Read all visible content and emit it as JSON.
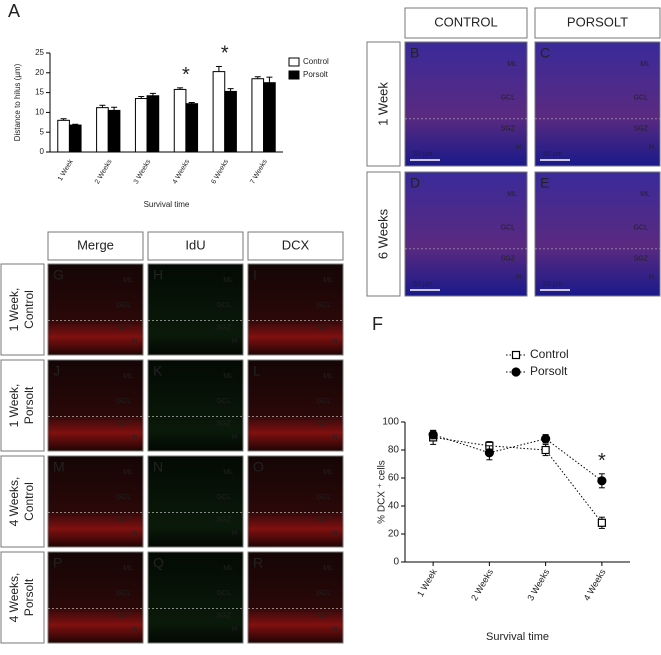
{
  "chart_data": [
    {
      "type": "bar",
      "panel_label": "A",
      "categories": [
        "1 Week",
        "2 Weeks",
        "3 Weeks",
        "4 Weeks",
        "6 Weeks",
        "7 Weeks"
      ],
      "series": [
        {
          "name": "Control",
          "color": "#ffffff",
          "values": [
            8,
            11.2,
            13.5,
            15.8,
            20.3,
            18.5
          ],
          "errors": [
            0.4,
            0.6,
            0.5,
            0.4,
            1.3,
            0.5
          ]
        },
        {
          "name": "Porsolt",
          "color": "#000000",
          "values": [
            6.8,
            10.5,
            14.2,
            12.2,
            15.3,
            17.5
          ],
          "errors": [
            0.2,
            0.8,
            0.6,
            0.3,
            0.7,
            1.4
          ]
        }
      ],
      "xlabel": "Survival time",
      "ylabel": "Distance to hilus (µm)",
      "ylim": [
        0,
        25
      ],
      "yticks": [
        0,
        5,
        10,
        15,
        20,
        25
      ],
      "annotations": [
        {
          "text": "*",
          "category": "4 Weeks",
          "color": "#e03030"
        },
        {
          "text": "*",
          "category": "6 Weeks",
          "color": "#e03030"
        }
      ]
    },
    {
      "type": "line",
      "panel_label": "F",
      "categories": [
        "1 Week",
        "2 Weeks",
        "3 Weeks",
        "4 Weeks"
      ],
      "series": [
        {
          "name": "Control",
          "color": "#ffffff",
          "marker": "square",
          "linestyle": "dotted",
          "values": [
            89,
            83,
            80,
            28
          ],
          "errors": [
            5,
            3,
            4,
            4
          ]
        },
        {
          "name": "Porsolt",
          "color": "#000000",
          "marker": "circle",
          "linestyle": "dotted",
          "values": [
            91,
            78,
            88,
            58
          ],
          "errors": [
            3,
            5,
            3,
            5
          ]
        }
      ],
      "xlabel": "Survival time",
      "ylabel": "% DCX ⁺ cells",
      "ylim": [
        0,
        100
      ],
      "yticks": [
        0,
        20,
        40,
        60,
        80,
        100
      ],
      "annotations": [
        {
          "text": "*",
          "category": "4 Weeks",
          "color": "#e03030"
        }
      ]
    }
  ],
  "figure_panels": {
    "top": {
      "columns": [
        "CONTROL",
        "PORSOLT"
      ],
      "rows": [
        [
          "1 Week"
        ],
        [
          "6 Weeks"
        ]
      ],
      "panels": [
        {
          "letter": "B",
          "labels": [
            "ML",
            "GCL",
            "SGZ",
            "H"
          ],
          "scale_bar": "50 µm"
        },
        {
          "letter": "C",
          "labels": [
            "ML",
            "GCL",
            "SGZ",
            "H"
          ],
          "scale_bar": "50 µm"
        },
        {
          "letter": "D",
          "labels": [
            "ML",
            "GCL",
            "SGZ",
            "H"
          ],
          "scale_bar": "50 µm"
        },
        {
          "letter": "E",
          "labels": [
            "ML",
            "GCL",
            "SGZ",
            "H"
          ],
          "scale_bar": "50 µm"
        }
      ]
    },
    "bottom": {
      "columns": [
        "Merge",
        "IdU",
        "DCX"
      ],
      "rows": [
        [
          "1 Week,",
          "Control"
        ],
        [
          "1 Week,",
          "Porsolt"
        ],
        [
          "4 Weeks,",
          "Control"
        ],
        [
          "4 Weeks,",
          "Porsolt"
        ]
      ],
      "panels": [
        {
          "letter": "G",
          "labels": [
            "ML",
            "GCL",
            "SGZ",
            "H"
          ]
        },
        {
          "letter": "H",
          "labels": [
            "ML",
            "GCL",
            "SGZ",
            "H"
          ]
        },
        {
          "letter": "I",
          "labels": [
            "ML",
            "GCL",
            "SGZ",
            "H"
          ]
        },
        {
          "letter": "J",
          "labels": [
            "ML",
            "GCL",
            "SGZ",
            "H"
          ]
        },
        {
          "letter": "K",
          "labels": [
            "ML",
            "GCL",
            "SGZ",
            "H"
          ]
        },
        {
          "letter": "L",
          "labels": [
            "ML",
            "GCL",
            "SGZ",
            "H"
          ]
        },
        {
          "letter": "M",
          "labels": [
            "ML",
            "GCL",
            "SGZ",
            "H"
          ]
        },
        {
          "letter": "N",
          "labels": [
            "ML",
            "GCL",
            "SGZ",
            "H"
          ]
        },
        {
          "letter": "O",
          "labels": [
            "ML",
            "GCL",
            "SGZ",
            "H"
          ]
        },
        {
          "letter": "P",
          "labels": [
            "ML",
            "GCL",
            "SGZ",
            "H"
          ]
        },
        {
          "letter": "Q",
          "labels": [
            "ML",
            "GCL",
            "SGZ",
            "H"
          ]
        },
        {
          "letter": "R",
          "labels": [
            "ML",
            "GCL",
            "SGZ",
            "H"
          ]
        }
      ]
    }
  }
}
